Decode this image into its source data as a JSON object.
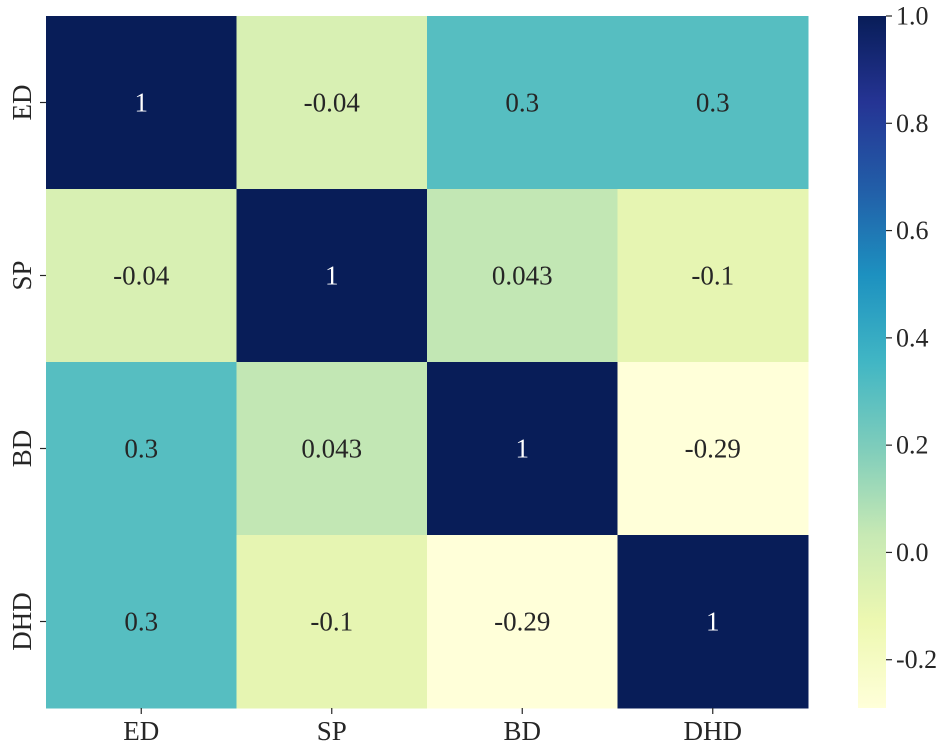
{
  "chart_data": {
    "type": "heatmap",
    "title": "",
    "xlabel": "",
    "ylabel": "",
    "categories": [
      "ED",
      "SP",
      "BD",
      "DHD"
    ],
    "rows": [
      "ED",
      "SP",
      "BD",
      "DHD"
    ],
    "matrix": [
      [
        1,
        -0.04,
        0.3,
        0.3
      ],
      [
        -0.04,
        1,
        0.043,
        -0.1
      ],
      [
        0.3,
        0.043,
        1,
        -0.29
      ],
      [
        0.3,
        -0.1,
        -0.29,
        1
      ]
    ],
    "labels": [
      [
        "1",
        "-0.04",
        "0.3",
        "0.3"
      ],
      [
        "-0.04",
        "1",
        "0.043",
        "-0.1"
      ],
      [
        "0.3",
        "0.043",
        "1",
        "-0.29"
      ],
      [
        "0.3",
        "-0.1",
        "-0.29",
        "1"
      ]
    ],
    "colorbar": {
      "range": [
        -0.29,
        1.0
      ],
      "ticks": [
        1.0,
        0.8,
        0.6,
        0.4,
        0.2,
        0.0,
        -0.2
      ],
      "tick_labels": [
        "1.0",
        "0.8",
        "0.6",
        "0.4",
        "0.2",
        "0.0",
        "-0.2"
      ],
      "colormap": "YlGnBu",
      "stops": [
        "#ffffd9",
        "#edf8b1",
        "#c7e9b4",
        "#7fcdbb",
        "#41b6c4",
        "#1d91c0",
        "#225ea8",
        "#253494",
        "#081d58"
      ]
    },
    "grid": false,
    "legend": "colorbar-right"
  }
}
